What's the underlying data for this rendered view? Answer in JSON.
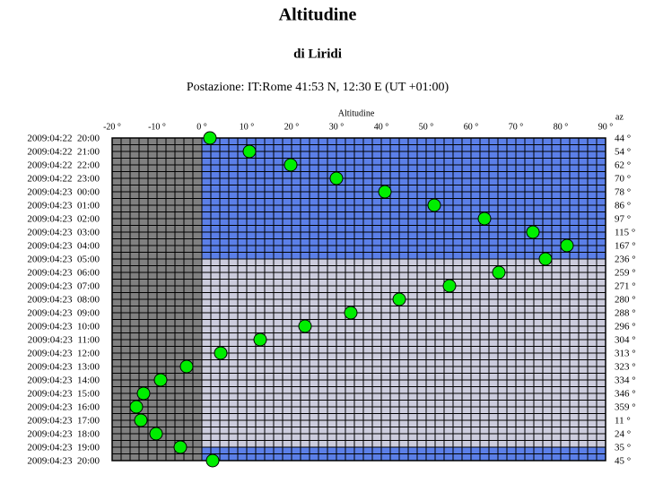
{
  "chart_data": {
    "type": "dot-grid",
    "title": "Altitudine",
    "subtitle": "di Liridi",
    "location": "Postazione: IT:Rome 41:53 N, 12:30 E (UT +01:00)",
    "x_label": "Altitudine",
    "az_label": "az",
    "xlim": [
      -20,
      90
    ],
    "xticks": [
      {
        "value": -20,
        "label": "-20 °"
      },
      {
        "value": -10,
        "label": "-10 °"
      },
      {
        "value": 0,
        "label": "0 °"
      },
      {
        "value": 10,
        "label": "10 °"
      },
      {
        "value": 20,
        "label": "20 °"
      },
      {
        "value": 30,
        "label": "30 °"
      },
      {
        "value": 40,
        "label": "40 °"
      },
      {
        "value": 50,
        "label": "50 °"
      },
      {
        "value": 60,
        "label": "60 °"
      },
      {
        "value": 70,
        "label": "70 °"
      },
      {
        "value": 80,
        "label": "80 °"
      },
      {
        "value": 90,
        "label": "90 °"
      }
    ],
    "categories": [
      "2009:04:22  20:00",
      "2009:04:22  21:00",
      "2009:04:22  22:00",
      "2009:04:22  23:00",
      "2009:04:23  00:00",
      "2009:04:23  01:00",
      "2009:04:23  02:00",
      "2009:04:23  03:00",
      "2009:04:23  04:00",
      "2009:04:23  05:00",
      "2009:04:23  06:00",
      "2009:04:23  07:00",
      "2009:04:23  08:00",
      "2009:04:23  09:00",
      "2009:04:23  10:00",
      "2009:04:23  11:00",
      "2009:04:23  12:00",
      "2009:04:23  13:00",
      "2009:04:23  14:00",
      "2009:04:23  15:00",
      "2009:04:23  16:00",
      "2009:04:23  17:00",
      "2009:04:23  18:00",
      "2009:04:23  19:00",
      "2009:04:23  20:00"
    ],
    "series": [
      {
        "color": "#00ee00",
        "values": [
          1.8,
          10.6,
          19.8,
          30,
          40.8,
          51.8,
          63,
          73.8,
          81.4,
          76.6,
          66.2,
          55.2,
          44,
          33.2,
          23,
          13,
          4.2,
          -3.4,
          -9.2,
          -13,
          -14.6,
          -13.6,
          -10.2,
          -4.8,
          2.4
        ]
      }
    ],
    "azimuth": {
      "values": [
        44,
        54,
        62,
        70,
        78,
        86,
        97,
        115,
        167,
        236,
        259,
        271,
        280,
        288,
        296,
        304,
        313,
        323,
        334,
        346,
        359,
        11,
        24,
        35,
        45
      ],
      "value_labels": [
        "44 °",
        "54 °",
        "62 °",
        "70 °",
        "78 °",
        "86 °",
        "97 °",
        "115 °",
        "167 °",
        "236 °",
        "259 °",
        "271 °",
        "280 °",
        "288 °",
        "296 °",
        "304 °",
        "313 °",
        "323 °",
        "334 °",
        "346 °",
        "359 °",
        "11 °",
        "24 °",
        "35 °",
        "45 °"
      ]
    },
    "below_horizon_color": "#808080",
    "band_colors": [
      "#5b7fe8",
      "#5b7fe8",
      "#5b7fe8",
      "#5b7fe8",
      "#5b7fe8",
      "#5b7fe8",
      "#5b7fe8",
      "#5b7fe8",
      "#5b7fe8",
      "#ccccdd",
      "#ccccdd",
      "#ccccdd",
      "#ccccdd",
      "#ccccdd",
      "#ccccdd",
      "#ccccdd",
      "#ccccdd",
      "#ccccdd",
      "#ccccdd",
      "#ccccdd",
      "#ccccdd",
      "#ccccdd",
      "#ccccdd",
      "#5b7fe8"
    ],
    "grid": true
  }
}
